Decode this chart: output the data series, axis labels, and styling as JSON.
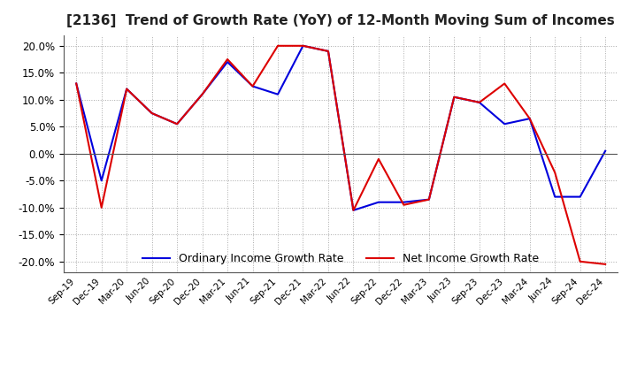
{
  "title": "[2136]  Trend of Growth Rate (YoY) of 12-Month Moving Sum of Incomes",
  "title_fontsize": 11,
  "ylim": [
    -0.22,
    0.22
  ],
  "yticks": [
    -0.2,
    -0.15,
    -0.1,
    -0.05,
    0.0,
    0.05,
    0.1,
    0.15,
    0.2
  ],
  "legend_labels": [
    "Ordinary Income Growth Rate",
    "Net Income Growth Rate"
  ],
  "legend_colors": [
    "#0000dd",
    "#dd0000"
  ],
  "x_labels": [
    "Sep-19",
    "Dec-19",
    "Mar-20",
    "Jun-20",
    "Sep-20",
    "Dec-20",
    "Mar-21",
    "Jun-21",
    "Sep-21",
    "Dec-21",
    "Mar-22",
    "Jun-22",
    "Sep-22",
    "Dec-22",
    "Mar-23",
    "Jun-23",
    "Sep-23",
    "Dec-23",
    "Mar-24",
    "Jun-24",
    "Sep-24",
    "Dec-24"
  ],
  "ordinary_income": [
    0.13,
    -0.05,
    0.12,
    0.075,
    0.055,
    0.11,
    0.17,
    0.125,
    0.11,
    0.2,
    0.19,
    -0.105,
    -0.09,
    -0.09,
    -0.085,
    0.105,
    0.095,
    0.055,
    0.065,
    -0.08,
    -0.08,
    0.005
  ],
  "net_income": [
    0.13,
    -0.1,
    0.12,
    0.075,
    0.055,
    0.11,
    0.175,
    0.125,
    0.2,
    0.2,
    0.19,
    -0.105,
    -0.01,
    -0.095,
    -0.085,
    0.105,
    0.095,
    0.13,
    0.065,
    -0.035,
    -0.2,
    -0.205
  ],
  "bg_color": "#ffffff",
  "grid_color": "#aaaaaa",
  "grid_style": "dotted",
  "line_width": 1.5
}
